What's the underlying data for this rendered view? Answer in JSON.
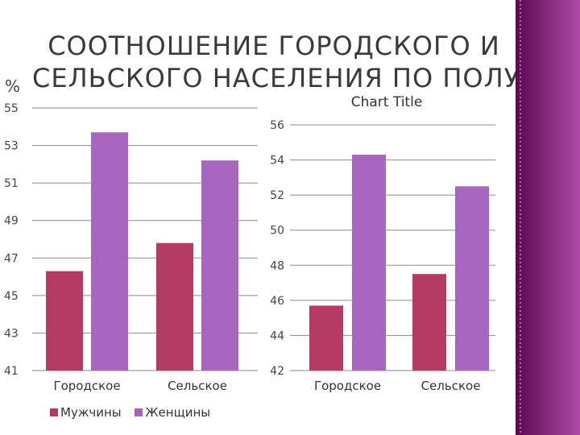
{
  "slide": {
    "title_line1": "СООТНОШЕНИЕ ГОРОДСКОГО И",
    "title_line2": "СЕЛЬСКОГО НАСЕЛЕНИЯ ПО ПОЛУ",
    "accent_colors": [
      "#5b0a4e",
      "#b04aa8"
    ]
  },
  "chart_data": [
    {
      "type": "bar",
      "title": "",
      "ylabel": "%",
      "xlabel": "",
      "categories": [
        "Городское",
        "Сельское"
      ],
      "ylim": [
        41,
        55
      ],
      "yticks": [
        "41",
        "43",
        "45",
        "47",
        "49",
        "51",
        "53",
        "55"
      ],
      "grid": true,
      "legend_position": "bottom",
      "series": [
        {
          "name": "Мужчины",
          "color": "#b73a64",
          "values": [
            46.3,
            47.8
          ]
        },
        {
          "name": "Женщины",
          "color": "#a765bf",
          "values": [
            53.7,
            52.2
          ]
        }
      ]
    },
    {
      "type": "bar",
      "title": "Chart Title",
      "ylabel": "",
      "xlabel": "",
      "categories": [
        "Городское",
        "Сельское"
      ],
      "ylim": [
        42,
        56
      ],
      "yticks": [
        "42",
        "44",
        "46",
        "48",
        "50",
        "52",
        "54",
        "56"
      ],
      "grid": true,
      "series": [
        {
          "color": "#b73a64",
          "values": [
            45.7,
            47.5
          ]
        },
        {
          "color": "#a765bf",
          "values": [
            54.3,
            52.5
          ]
        }
      ]
    }
  ]
}
